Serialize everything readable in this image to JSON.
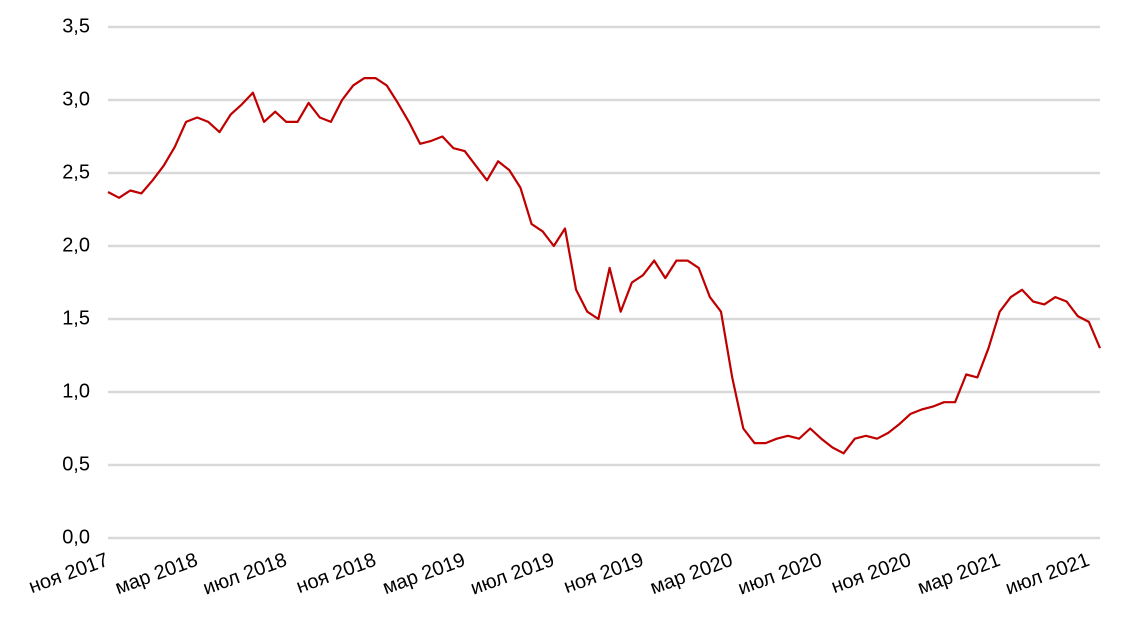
{
  "chart_data": {
    "type": "line",
    "categories": [
      "ноя 2017",
      null,
      null,
      null,
      null,
      null,
      null,
      null,
      "мар 2018",
      null,
      null,
      null,
      null,
      null,
      null,
      null,
      "июл 2018",
      null,
      null,
      null,
      null,
      null,
      null,
      null,
      "ноя 2018",
      null,
      null,
      null,
      null,
      null,
      null,
      null,
      "мар 2019",
      null,
      null,
      null,
      null,
      null,
      null,
      null,
      "июл 2019",
      null,
      null,
      null,
      null,
      null,
      null,
      null,
      "ноя 2019",
      null,
      null,
      null,
      null,
      null,
      null,
      null,
      "мар 2020",
      null,
      null,
      null,
      null,
      null,
      null,
      null,
      "июл 2020",
      null,
      null,
      null,
      null,
      null,
      null,
      null,
      "ноя 2020",
      null,
      null,
      null,
      null,
      null,
      null,
      null,
      "мар 2021",
      null,
      null,
      null,
      null,
      null,
      null,
      null,
      "июл 2021",
      null
    ],
    "series": [
      {
        "color": "#c00000",
        "values": [
          2.37,
          2.33,
          2.38,
          2.36,
          2.45,
          2.55,
          2.68,
          2.85,
          2.88,
          2.85,
          2.78,
          2.9,
          2.97,
          3.05,
          2.85,
          2.92,
          2.85,
          2.85,
          2.98,
          2.88,
          2.85,
          3.0,
          3.1,
          3.15,
          3.15,
          3.1,
          2.98,
          2.85,
          2.7,
          2.72,
          2.75,
          2.67,
          2.65,
          2.55,
          2.45,
          2.58,
          2.52,
          2.4,
          2.15,
          2.1,
          2.0,
          2.12,
          1.7,
          1.55,
          1.5,
          1.85,
          1.55,
          1.75,
          1.8,
          1.9,
          1.78,
          1.9,
          1.9,
          1.85,
          1.65,
          1.55,
          1.1,
          0.75,
          0.65,
          0.65,
          0.68,
          0.7,
          0.68,
          0.75,
          0.68,
          0.62,
          0.58,
          0.68,
          0.7,
          0.68,
          0.72,
          0.78,
          0.85,
          0.88,
          0.9,
          0.93,
          0.93,
          1.12,
          1.1,
          1.3,
          1.55,
          1.65,
          1.7,
          1.62,
          1.6,
          1.65,
          1.62,
          1.52,
          1.48,
          1.3
        ]
      }
    ],
    "ylim": [
      0,
      3.5
    ],
    "yticks": [
      {
        "value": 0,
        "label": "0,0"
      },
      {
        "value": 0.5,
        "label": "0,5"
      },
      {
        "value": 1,
        "label": "1,0"
      },
      {
        "value": 1.5,
        "label": "1,5"
      },
      {
        "value": 2,
        "label": "2,0"
      },
      {
        "value": 2.5,
        "label": "2,5"
      },
      {
        "value": 3,
        "label": "3,0"
      },
      {
        "value": 3.5,
        "label": "3,5"
      }
    ],
    "grid": true
  }
}
